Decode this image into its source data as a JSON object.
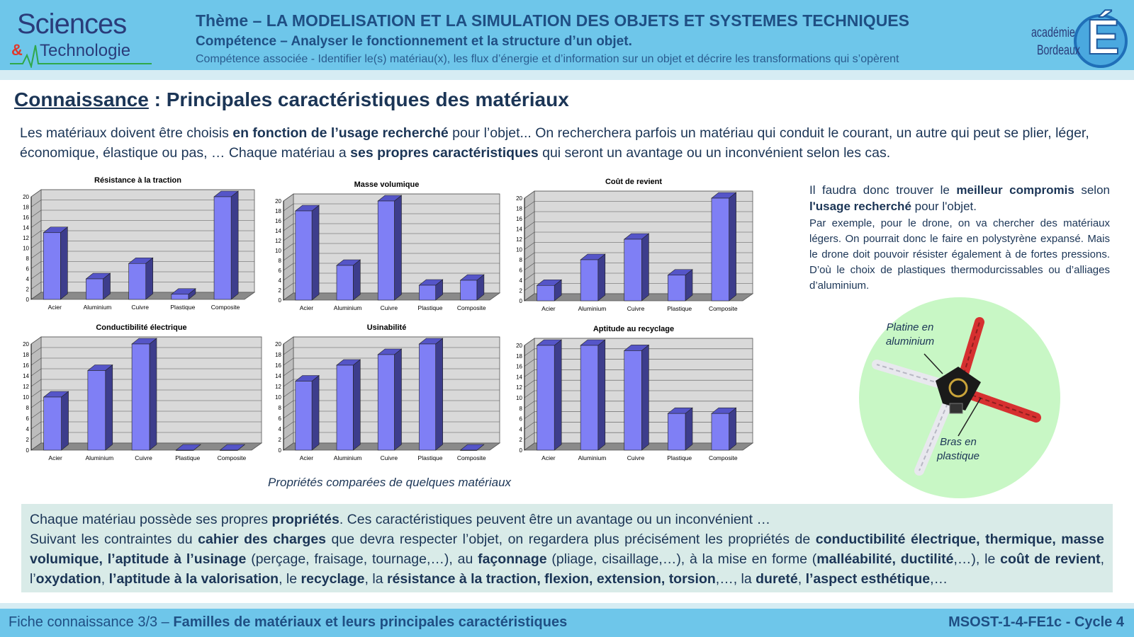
{
  "header": {
    "logo_sciences": "Sciences",
    "logo_technologie": "Technologie",
    "logo_amp": "&",
    "theme": "Thème – LA MODELISATION ET LA SIMULATION DES OBJETS ET SYSTEMES TECHNIQUES",
    "competence": "Compétence – Analyser le fonctionnement et la structure d’un objet.",
    "competence_associee": "Compétence associée - Identifier le(s) matériau(x), les flux d’énergie et d’information sur un objet et décrire les transformations qui s’opèrent",
    "academie_line1": "académie",
    "academie_line2": "Bordeaux",
    "academie_letter": "É"
  },
  "title": {
    "underlined": "Connaissance",
    "rest": " : Principales caractéristiques des matériaux"
  },
  "intro": {
    "t1": "Les matériaux doivent être choisis ",
    "b1": "en fonction de l’usage recherché",
    "t2": " pour l’objet...  On recherchera parfois un matériau qui conduit le courant, un autre qui peut se plier, léger, économique, élastique ou pas, … Chaque matériau a ",
    "b2": "ses propres caractéristiques",
    "t3": " qui seront un avantage ou un inconvénient selon les cas."
  },
  "chart_data": [
    {
      "type": "bar",
      "title": "Résistance à la traction",
      "categories": [
        "Acier",
        "Aluminium",
        "Cuivre",
        "Plastique",
        "Composite"
      ],
      "values": [
        13,
        4,
        7,
        1,
        20
      ],
      "ylim": [
        0,
        20
      ],
      "yticks": [
        "0",
        "2",
        "4",
        "6",
        "8",
        "10",
        "12",
        "14",
        "16",
        "18",
        "20"
      ],
      "grid": true
    },
    {
      "type": "bar",
      "title": "Masse volumique",
      "categories": [
        "Acier",
        "Aluminium",
        "Cuivre",
        "Plastique",
        "Composite"
      ],
      "values": [
        18,
        7,
        20,
        3,
        4
      ],
      "ylim": [
        0,
        20
      ],
      "yticks": [
        "0",
        "2",
        "4",
        "6",
        "8",
        "10",
        "12",
        "14",
        "16",
        "18",
        "20"
      ],
      "grid": true
    },
    {
      "type": "bar",
      "title": "Coût de revient",
      "categories": [
        "Acier",
        "Aluminium",
        "Cuivre",
        "Plastique",
        "Composite"
      ],
      "values": [
        3,
        8,
        12,
        5,
        20
      ],
      "ylim": [
        0,
        20
      ],
      "yticks": [
        "0",
        "2",
        "4",
        "6",
        "8",
        "10",
        "12",
        "14",
        "16",
        "18",
        "20"
      ],
      "grid": true
    },
    {
      "type": "bar",
      "title": "Conductibilité électrique",
      "categories": [
        "Acier",
        "Aluminium",
        "Cuivre",
        "Plastique",
        "Composite"
      ],
      "values": [
        10,
        15,
        20,
        0,
        0
      ],
      "ylim": [
        0,
        20
      ],
      "yticks": [
        "0",
        "2",
        "4",
        "6",
        "8",
        "10",
        "12",
        "14",
        "16",
        "18",
        "20"
      ],
      "grid": true
    },
    {
      "type": "bar",
      "title": "Usinabilité",
      "categories": [
        "Acier",
        "Aluminium",
        "Cuivre",
        "Plastique",
        "Composite"
      ],
      "values": [
        13,
        16,
        18,
        20,
        0
      ],
      "ylim": [
        0,
        20
      ],
      "yticks": [
        "0",
        "2",
        "4",
        "6",
        "8",
        "10",
        "12",
        "14",
        "16",
        "18",
        "20"
      ],
      "grid": true
    },
    {
      "type": "bar",
      "title": "Aptitude au recyclage",
      "categories": [
        "Acier",
        "Aluminium",
        "Cuivre",
        "Plastique",
        "Composite"
      ],
      "values": [
        20,
        20,
        19,
        7,
        7
      ],
      "ylim": [
        0,
        20
      ],
      "yticks": [
        "0",
        "2",
        "4",
        "6",
        "8",
        "10",
        "12",
        "14",
        "16",
        "18",
        "20"
      ],
      "grid": true
    }
  ],
  "chart_colors": {
    "front": "#7f7ff5",
    "side": "#3d3d8c",
    "top": "#5555c8",
    "wall": "#d9d9d9",
    "floor": "#8a8a8a"
  },
  "caption": "Propriétés comparées de quelques matériaux",
  "right": {
    "t1": "Il faudra donc trouver le ",
    "b1": "meilleur compromis",
    "t2": " selon ",
    "b2": "l'usage recherché",
    "t3": " pour l'objet.",
    "p2": "Par exemple, pour le drone, on va chercher des matériaux légers. On pourrait donc le faire en polystyrène expansé. Mais le drone doit pouvoir résister également à de fortes pressions.  D’où le choix de plastiques thermodurcissables ou d’alliages d’aluminium."
  },
  "drone": {
    "label_platine_1": "Platine en",
    "label_platine_2": "aluminium",
    "label_bras_1": "Bras en",
    "label_bras_2": "plastique"
  },
  "bottom": {
    "t1": "Chaque matériau possède ses propres ",
    "b1": "propriétés",
    "t2": ". Ces caractéristiques peuvent être un avantage ou un inconvénient …",
    "t3": "Suivant les contraintes du ",
    "b2": "cahier des charges",
    "t4": " que devra respecter l’objet, on regardera plus précisément les propriétés de ",
    "b3": "conductibilité électrique, thermique, masse volumique, l’aptitude à l’usinage",
    "t5": " (perçage, fraisage, tournage,…), au ",
    "b4": "façonnage",
    "t6": " (pliage, cisaillage,…), à la mise en forme (",
    "b5": "malléabilité, ductilité",
    "t7": ",…), le ",
    "b6": "coût de revient",
    "t8": ", l’",
    "b7": "oxydation",
    "t9": ", ",
    "b8": "l’aptitude à la valorisation",
    "t10": ", le ",
    "b9": "recyclage",
    "t11": ", la ",
    "b10": "résistance à la traction, flexion, extension, torsion",
    "t12": ",…, la ",
    "b11": "dureté",
    "t13": ", ",
    "b12": "l’aspect esthétique",
    "t14": ",…"
  },
  "footer": {
    "left_normal": "Fiche connaissance 3/3 – ",
    "left_bold": "Familles de matériaux et leurs principales caractéristiques",
    "right": "MSOST-1-4-FE1c - Cycle 4"
  }
}
